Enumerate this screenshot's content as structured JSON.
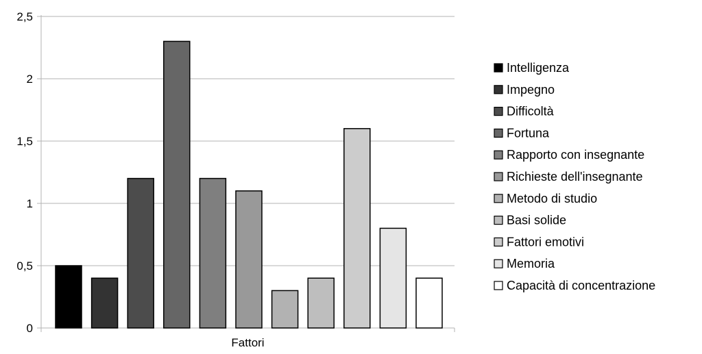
{
  "chart_data": {
    "type": "bar",
    "xlabel": "Fattori",
    "ylabel": "",
    "ylim": [
      0,
      2.5
    ],
    "yticks": [
      "0",
      "0,5",
      "1",
      "1,5",
      "2",
      "2,5"
    ],
    "ytick_values": [
      0,
      0.5,
      1,
      1.5,
      2,
      2.5
    ],
    "grid": true,
    "legend_position": "right",
    "series": [
      {
        "name": "Intelligenza",
        "values": [
          0.5
        ],
        "color": "#000000"
      },
      {
        "name": "Impegno",
        "values": [
          0.4
        ],
        "color": "#333333"
      },
      {
        "name": "Difficoltà",
        "values": [
          1.2
        ],
        "color": "#4c4c4c"
      },
      {
        "name": "Fortuna",
        "values": [
          2.3
        ],
        "color": "#666666"
      },
      {
        "name": "Rapporto con insegnante",
        "values": [
          1.2
        ],
        "color": "#7f7f7f"
      },
      {
        "name": "Richieste dell'insegnante",
        "values": [
          1.1
        ],
        "color": "#999999"
      },
      {
        "name": "Metodo di studio",
        "values": [
          0.3
        ],
        "color": "#b2b2b2"
      },
      {
        "name": "Basi solide",
        "values": [
          0.4
        ],
        "color": "#bebebe"
      },
      {
        "name": "Fattori emotivi",
        "values": [
          1.6
        ],
        "color": "#cccccc"
      },
      {
        "name": "Memoria",
        "values": [
          0.8
        ],
        "color": "#e5e5e5"
      },
      {
        "name": "Capacità di concentrazione",
        "values": [
          0.4
        ],
        "color": "#ffffff"
      }
    ]
  }
}
